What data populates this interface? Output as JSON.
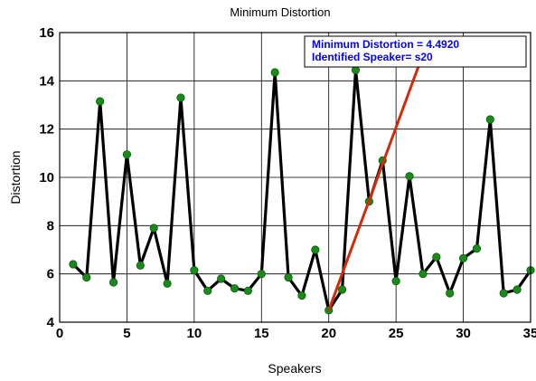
{
  "chart_data": {
    "type": "line",
    "title": "Minimum Distortion",
    "xlabel": "Speakers",
    "ylabel": "Distortion",
    "xlim": [
      0,
      35
    ],
    "ylim": [
      4,
      16
    ],
    "xticks": [
      "0",
      "5",
      "10",
      "15",
      "20",
      "25",
      "30",
      "35"
    ],
    "yticks": [
      "4",
      "6",
      "8",
      "10",
      "12",
      "14",
      "16"
    ],
    "grid": true,
    "series": [
      {
        "color": "#000000",
        "marker_color": "#1a8a1a",
        "x": [
          1,
          2,
          3,
          4,
          5,
          6,
          7,
          8,
          9,
          10,
          11,
          12,
          13,
          14,
          15,
          16,
          17,
          18,
          19,
          20,
          21,
          22,
          23,
          24,
          25,
          26,
          27,
          28,
          29,
          30,
          31,
          32,
          33,
          34,
          35
        ],
        "y": [
          6.4,
          5.85,
          13.15,
          5.65,
          10.95,
          6.35,
          7.9,
          5.6,
          13.3,
          6.15,
          5.3,
          5.8,
          5.4,
          5.3,
          6.0,
          14.35,
          5.85,
          5.1,
          7.0,
          4.49,
          5.35,
          14.45,
          9.0,
          10.7,
          5.7,
          10.05,
          6.0,
          6.7,
          5.2,
          6.65,
          7.05,
          12.4,
          5.2,
          5.35,
          6.15
        ]
      }
    ],
    "annotation": {
      "lines": [
        "Minimum Distortion = 4.4920",
        "Identified  Speaker= s20"
      ],
      "color": "#0000ff",
      "arrow_color": "#d42a0a",
      "arrow_from": [
        26.8,
        14.8
      ],
      "arrow_to": [
        20,
        4.49
      ]
    }
  }
}
